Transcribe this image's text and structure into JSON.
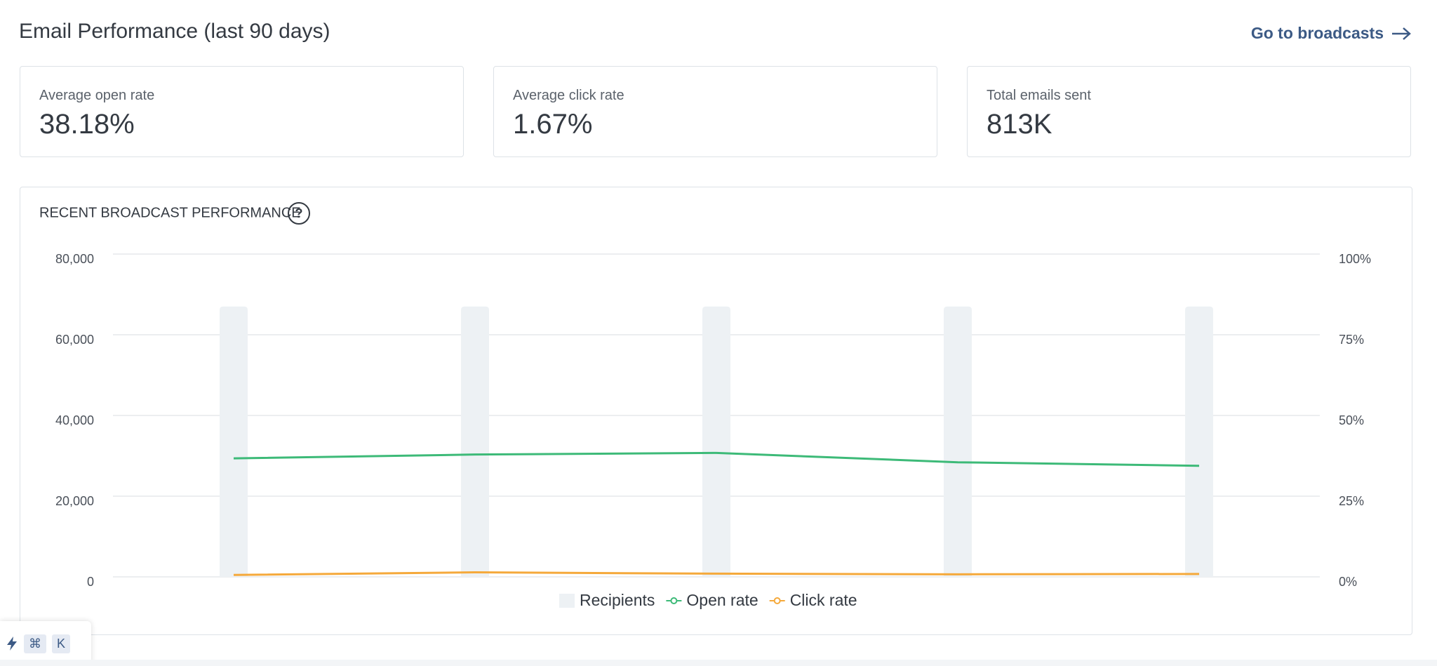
{
  "header": {
    "title": "Email Performance (last 90 days)",
    "link": "Go to broadcasts"
  },
  "stats": [
    {
      "label": "Average open rate",
      "value": "38.18%"
    },
    {
      "label": "Average click rate",
      "value": "1.67%"
    },
    {
      "label": "Total emails sent",
      "value": "813K"
    }
  ],
  "chart_card": {
    "title": "RECENT BROADCAST PERFORMANCE",
    "help": "?"
  },
  "chart_data": {
    "type": "bar-line",
    "categories": [
      null,
      null,
      null,
      null,
      null
    ],
    "series": [
      {
        "name": "Recipients",
        "color": "#edf1f4",
        "values": [
          67000,
          67000,
          67000,
          67000,
          67000
        ]
      },
      {
        "name": "Open rate",
        "color": "#3dba78",
        "axis": "y2",
        "values": [
          36.7,
          37.9,
          38.4,
          35.5,
          34.4
        ]
      },
      {
        "name": "Click rate",
        "color": "#f5a93b",
        "axis": "y2",
        "values": [
          0.6,
          1.4,
          1.0,
          0.8,
          0.9
        ]
      }
    ],
    "ylim": [
      0,
      80000
    ],
    "yticks": [
      0,
      {
        "value": 20000,
        "label": "20,000"
      },
      {
        "value": 40000,
        "label": "40,000"
      },
      {
        "value": 60000,
        "label": "60,000"
      },
      {
        "value": 80000,
        "label": "80,000"
      }
    ],
    "y2lim": [
      0,
      100
    ],
    "y2ticks": [
      {
        "value": 0,
        "label": "0%"
      },
      {
        "value": 25,
        "label": "25%"
      },
      {
        "value": 50,
        "label": "50%"
      },
      {
        "value": 75,
        "label": "75%"
      },
      {
        "value": 100,
        "label": "100%"
      }
    ],
    "grid": true,
    "legend": "bottom"
  },
  "shortcut": {
    "keys": [
      "⌘",
      "K"
    ]
  }
}
